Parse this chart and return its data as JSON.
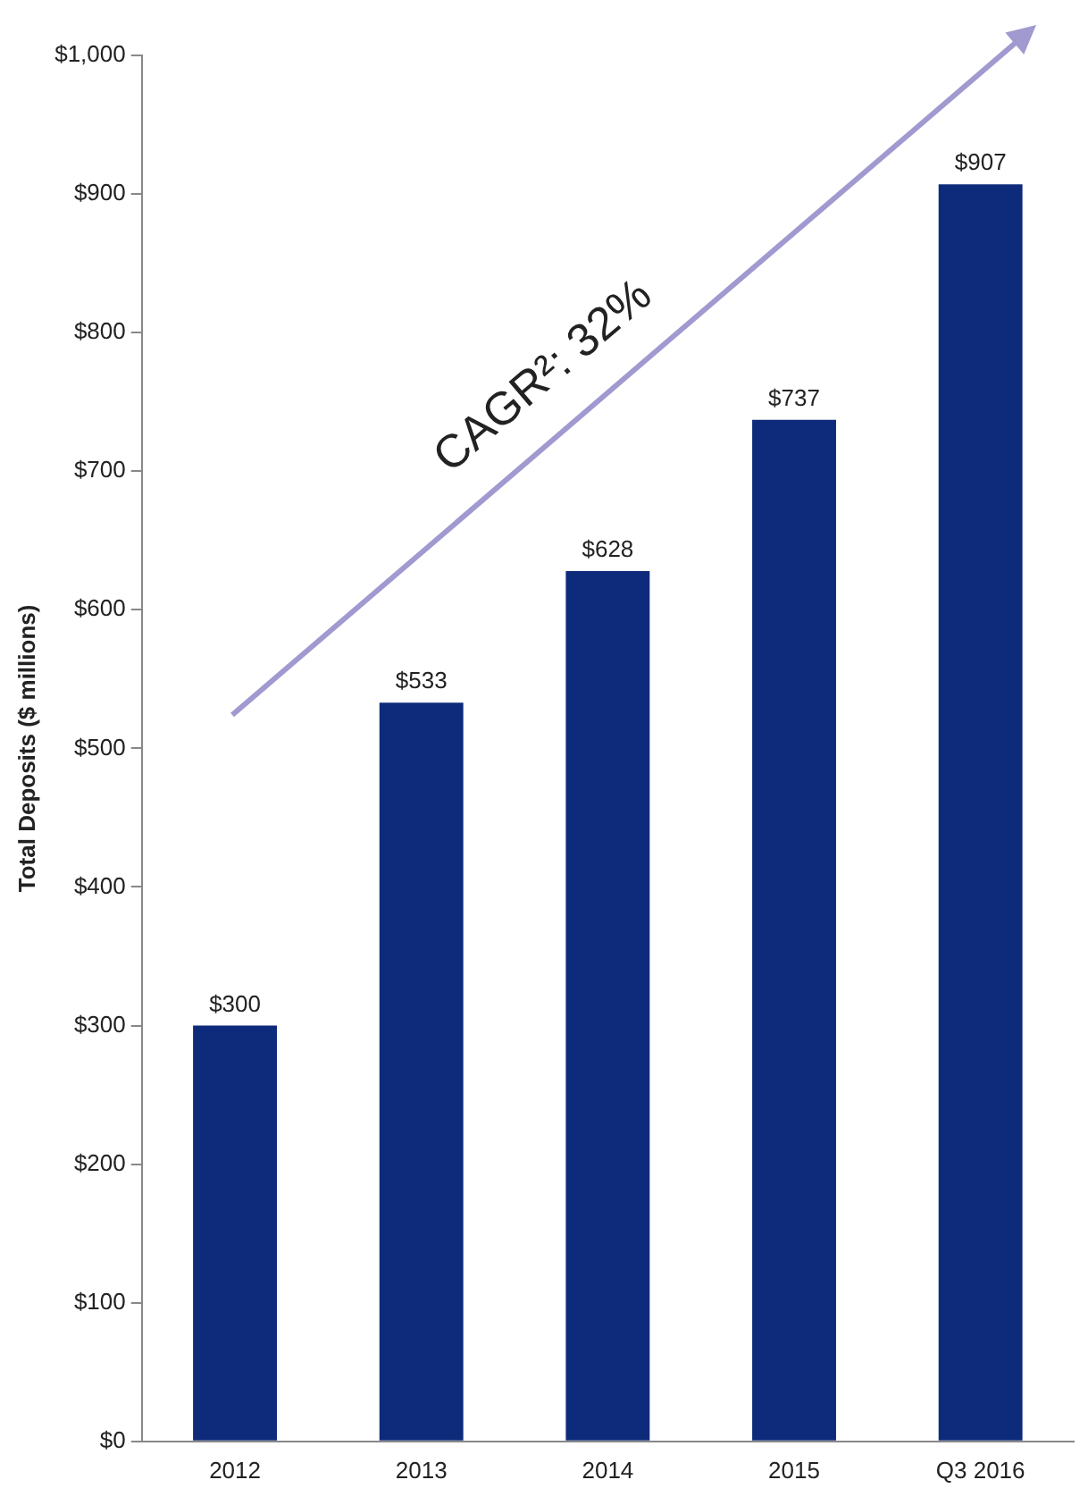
{
  "chart_data": {
    "type": "bar",
    "ylabel": "Total Deposits ($ millions)",
    "categories": [
      "2012",
      "2013",
      "2014",
      "2015",
      "Q3 2016"
    ],
    "values": [
      300,
      533,
      628,
      737,
      907
    ],
    "value_labels": [
      "$300",
      "$533",
      "$628",
      "$737",
      "$907"
    ],
    "color": "#0d2b7a",
    "ylim": [
      0,
      1000
    ],
    "yticks": [
      {
        "value": 0,
        "label": "$0"
      },
      {
        "value": 100,
        "label": "$100"
      },
      {
        "value": 200,
        "label": "$200"
      },
      {
        "value": 300,
        "label": "$300"
      },
      {
        "value": 400,
        "label": "$400"
      },
      {
        "value": 500,
        "label": "$500"
      },
      {
        "value": 600,
        "label": "$600"
      },
      {
        "value": 700,
        "label": "$700"
      },
      {
        "value": 800,
        "label": "$800"
      },
      {
        "value": 900,
        "label": "$900"
      },
      {
        "value": 1000,
        "label": "$1,000"
      }
    ],
    "grid": false,
    "legend": false,
    "annotations": [
      "CAGR²: 32%"
    ]
  }
}
